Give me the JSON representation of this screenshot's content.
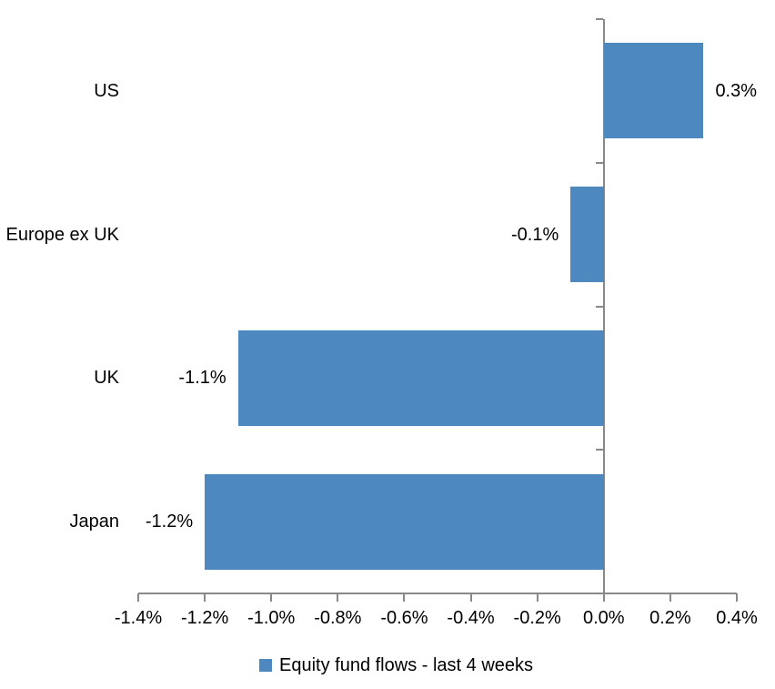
{
  "chart_data": {
    "type": "bar",
    "orientation": "horizontal",
    "title": "",
    "categories": [
      "US",
      "Europe ex UK",
      "UK",
      "Japan"
    ],
    "series": [
      {
        "name": "Equity fund flows - last 4 weeks",
        "values": [
          0.3,
          -0.1,
          -1.1,
          -1.2
        ],
        "data_labels": [
          "0.3%",
          "-0.1%",
          "-1.1%",
          "-1.2%"
        ]
      }
    ],
    "xlabel": "",
    "ylabel": "",
    "xlim": [
      -1.4,
      0.4
    ],
    "x_tick_values": [
      -1.4,
      -1.2,
      -1.0,
      -0.8,
      -0.6,
      -0.4,
      -0.2,
      0.0,
      0.2,
      0.4
    ],
    "x_tick_labels": [
      "-1.4%",
      "-1.2%",
      "-1.0%",
      "-0.8%",
      "-0.6%",
      "-0.4%",
      "-0.2%",
      "0.0%",
      "0.2%",
      "0.4%"
    ],
    "grid": false,
    "legend_position": "bottom",
    "colors": {
      "bar_fill": "#4D89BF",
      "axis_line": "#898989",
      "text": "#000000",
      "background": "#ffffff"
    }
  },
  "legend": {
    "label": "Equity fund flows - last 4 weeks",
    "marker_color": "#4D89BF"
  }
}
